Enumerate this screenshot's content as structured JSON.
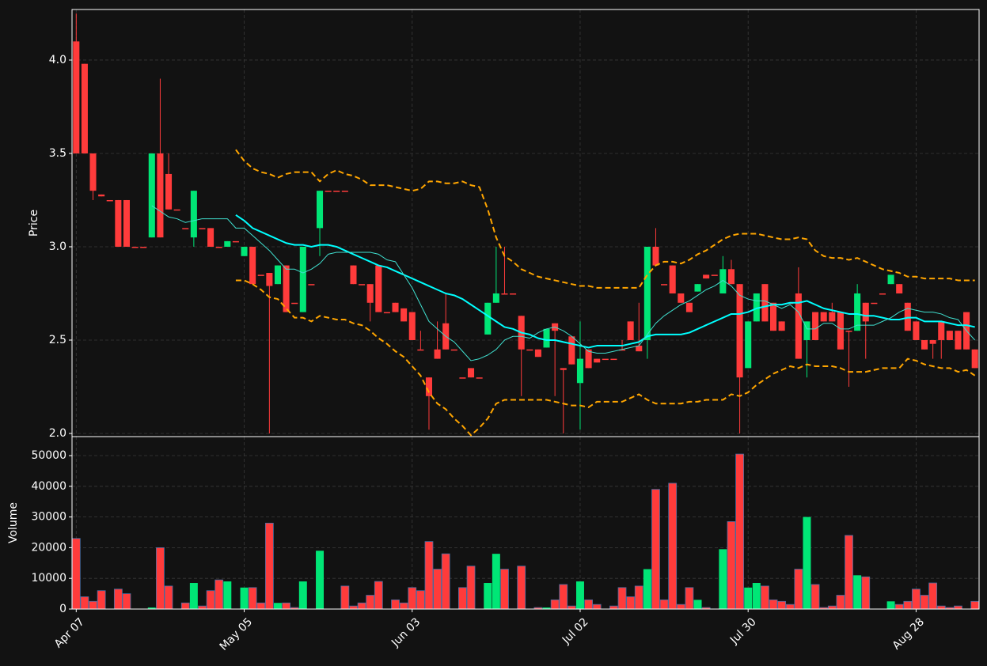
{
  "chart_data": [
    {
      "type": "candlestick",
      "ylabel": "Price",
      "ylim": [
        1.983,
        4.271
      ],
      "yticks": [
        {
          "value": 2,
          "label": "2.0"
        },
        2.5,
        {
          "value": 3,
          "label": "3.0"
        },
        3.5,
        {
          "value": 4,
          "label": "4.0"
        }
      ],
      "grid": true,
      "up_color": "#00e676",
      "down_color": "#ff3b3b",
      "open": [
        4.1,
        3.98,
        3.5,
        3.28,
        3.25,
        3.25,
        3.25,
        3,
        3,
        3.05,
        3.5,
        3.39,
        3.2,
        3.1,
        3.05,
        3.1,
        3.1,
        3,
        3,
        3.03,
        2.95,
        3,
        2.85,
        2.86,
        2.8,
        2.9,
        2.7,
        2.65,
        2.8,
        3.1,
        3.3,
        3.3,
        3.3,
        2.9,
        2.8,
        2.8,
        2.9,
        2.65,
        2.7,
        2.67,
        2.65,
        2.45,
        2.3,
        2.45,
        2.59,
        2.45,
        2.3,
        2.35,
        2.3,
        2.53,
        2.7,
        2.75,
        2.75,
        2.63,
        2.45,
        2.45,
        2.46,
        2.59,
        2.35,
        2.52,
        2.27,
        2.45,
        2.4,
        2.4,
        2.4,
        2.45,
        2.6,
        2.47,
        2.5,
        3,
        2.8,
        2.9,
        2.75,
        2.7,
        2.76,
        2.85,
        2.85,
        2.75,
        2.88,
        2.8,
        2.35,
        2.6,
        2.8,
        2.7,
        2.6,
        2.7,
        2.75,
        2.5,
        2.65,
        2.65,
        2.65,
        2.65,
        2.55,
        2.55,
        2.7,
        2.7,
        2.75,
        2.8,
        2.8,
        2.7,
        2.6,
        2.5,
        2.5,
        2.6,
        2.55,
        2.55,
        2.65,
        2.45
      ],
      "high": [
        4.25,
        3.98,
        3.5,
        3.28,
        3.25,
        3.25,
        3.25,
        3,
        3,
        3.5,
        3.9,
        3.5,
        3.2,
        3.1,
        3.3,
        3.1,
        3.1,
        3,
        3.03,
        3.03,
        3,
        3,
        2.85,
        2.86,
        2.9,
        2.9,
        2.7,
        3,
        2.8,
        3.3,
        3.3,
        3.3,
        3.3,
        2.9,
        2.8,
        2.8,
        2.9,
        2.65,
        2.7,
        2.67,
        2.65,
        2.55,
        2.3,
        2.6,
        2.75,
        2.45,
        2.3,
        2.35,
        2.3,
        2.7,
        3,
        3,
        2.75,
        2.63,
        2.45,
        2.45,
        2.56,
        2.59,
        2.35,
        2.52,
        2.6,
        2.45,
        2.4,
        2.4,
        2.4,
        2.5,
        2.6,
        2.7,
        3,
        3.1,
        2.8,
        2.9,
        2.75,
        2.7,
        2.8,
        2.85,
        2.85,
        2.95,
        2.93,
        2.8,
        2.6,
        2.75,
        2.8,
        2.7,
        2.6,
        2.7,
        2.89,
        2.6,
        2.65,
        2.65,
        2.7,
        2.65,
        2.55,
        2.8,
        2.7,
        2.7,
        2.75,
        2.85,
        2.8,
        2.7,
        2.6,
        2.5,
        2.5,
        2.6,
        2.55,
        2.55,
        2.65,
        2.45
      ],
      "low": [
        3.5,
        3.5,
        3.25,
        3.27,
        3.25,
        3,
        3,
        3,
        3,
        3.05,
        3.05,
        3.2,
        3.2,
        3.1,
        3,
        3.1,
        3,
        3,
        3,
        3.03,
        2.95,
        2.8,
        2.85,
        2,
        2.8,
        2.65,
        2.7,
        2.65,
        2.8,
        2.95,
        3.3,
        3.3,
        3.3,
        2.8,
        2.8,
        2.6,
        2.65,
        2.65,
        2.65,
        2.6,
        2.5,
        2.45,
        2.02,
        2.4,
        2.45,
        2.45,
        2.3,
        2.3,
        2.3,
        2.53,
        2.7,
        2.75,
        2.75,
        2.2,
        2.45,
        2.41,
        2.46,
        2.2,
        2,
        2.37,
        2.02,
        2.35,
        2.38,
        2.4,
        2.4,
        2.45,
        2.5,
        2.44,
        2.4,
        2.9,
        2.8,
        2.75,
        2.7,
        2.65,
        2.76,
        2.83,
        2.85,
        2.75,
        2.8,
        2,
        2.35,
        2.6,
        2.6,
        2.55,
        2.55,
        2.7,
        2.4,
        2.3,
        2.5,
        2.6,
        2.6,
        2.45,
        2.25,
        2.55,
        2.4,
        2.7,
        2.75,
        2.8,
        2.75,
        2.55,
        2.5,
        2.45,
        2.4,
        2.4,
        2.5,
        2.45,
        2.45,
        2.35
      ],
      "close": [
        3.5,
        3.5,
        3.3,
        3.27,
        3.25,
        3,
        3,
        3,
        3,
        3.5,
        3.05,
        3.2,
        3.2,
        3.1,
        3.3,
        3.1,
        3,
        3,
        3.03,
        3.03,
        3,
        2.8,
        2.85,
        2.79,
        2.9,
        2.65,
        2.7,
        3,
        2.8,
        3.3,
        3.3,
        3.3,
        3.3,
        2.8,
        2.8,
        2.7,
        2.65,
        2.65,
        2.65,
        2.6,
        2.5,
        2.45,
        2.2,
        2.4,
        2.45,
        2.45,
        2.3,
        2.3,
        2.3,
        2.7,
        2.75,
        2.75,
        2.75,
        2.45,
        2.45,
        2.41,
        2.56,
        2.55,
        2.34,
        2.37,
        2.4,
        2.35,
        2.38,
        2.4,
        2.4,
        2.45,
        2.5,
        2.44,
        3,
        2.9,
        2.8,
        2.75,
        2.7,
        2.65,
        2.8,
        2.83,
        2.85,
        2.88,
        2.8,
        2.3,
        2.6,
        2.75,
        2.6,
        2.55,
        2.55,
        2.7,
        2.4,
        2.6,
        2.5,
        2.6,
        2.6,
        2.45,
        2.55,
        2.75,
        2.6,
        2.7,
        2.75,
        2.85,
        2.75,
        2.55,
        2.5,
        2.45,
        2.48,
        2.5,
        2.5,
        2.45,
        2.45,
        2.35
      ],
      "series": [
        {
          "color": "#00ffff",
          "linewidth": 2,
          "linestyle": "solid",
          "values": [
            null,
            null,
            null,
            null,
            null,
            null,
            null,
            null,
            null,
            null,
            null,
            null,
            null,
            null,
            null,
            null,
            null,
            null,
            null,
            3.17,
            3.14,
            3.1,
            3.08,
            3.06,
            3.04,
            3.02,
            3.01,
            3.01,
            3.0,
            3.01,
            3.01,
            3.0,
            2.98,
            2.96,
            2.94,
            2.92,
            2.9,
            2.89,
            2.87,
            2.85,
            2.83,
            2.81,
            2.79,
            2.77,
            2.75,
            2.74,
            2.72,
            2.69,
            2.66,
            2.63,
            2.6,
            2.57,
            2.56,
            2.54,
            2.53,
            2.51,
            2.5,
            2.5,
            2.49,
            2.48,
            2.47,
            2.46,
            2.47,
            2.47,
            2.47,
            2.47,
            2.48,
            2.49,
            2.52,
            2.53,
            2.53,
            2.53,
            2.53,
            2.54,
            2.56,
            2.58,
            2.6,
            2.62,
            2.64,
            2.64,
            2.65,
            2.67,
            2.68,
            2.69,
            2.69,
            2.7,
            2.7,
            2.71,
            2.69,
            2.67,
            2.66,
            2.65,
            2.64,
            2.64,
            2.63,
            2.63,
            2.62,
            2.61,
            2.61,
            2.62,
            2.62,
            2.6,
            2.6,
            2.6,
            2.59,
            2.58,
            2.58,
            2.57
          ]
        },
        {
          "color": "#40e0d0",
          "linewidth": 1,
          "linestyle": "solid",
          "values": [
            null,
            null,
            null,
            null,
            null,
            null,
            null,
            null,
            null,
            3.22,
            3.19,
            3.16,
            3.15,
            3.13,
            3.14,
            3.15,
            3.15,
            3.15,
            3.15,
            3.1,
            3.1,
            3.06,
            3.02,
            2.98,
            2.93,
            2.88,
            2.88,
            2.86,
            2.88,
            2.91,
            2.96,
            2.97,
            2.97,
            2.97,
            2.97,
            2.97,
            2.96,
            2.93,
            2.92,
            2.85,
            2.78,
            2.69,
            2.6,
            2.56,
            2.52,
            2.49,
            2.44,
            2.39,
            2.4,
            2.42,
            2.45,
            2.5,
            2.52,
            2.52,
            2.51,
            2.54,
            2.56,
            2.57,
            2.55,
            2.52,
            2.48,
            2.44,
            2.43,
            2.43,
            2.44,
            2.45,
            2.46,
            2.47,
            2.53,
            2.59,
            2.63,
            2.66,
            2.69,
            2.71,
            2.74,
            2.77,
            2.79,
            2.82,
            2.79,
            2.74,
            2.72,
            2.71,
            2.71,
            2.69,
            2.67,
            2.69,
            2.65,
            2.56,
            2.56,
            2.59,
            2.59,
            2.56,
            2.56,
            2.58,
            2.58,
            2.58,
            2.6,
            2.62,
            2.65,
            2.67,
            2.66,
            2.65,
            2.65,
            2.64,
            2.62,
            2.61,
            2.55,
            2.5
          ]
        },
        {
          "color": "#ffa500",
          "linewidth": 2,
          "linestyle": "dashed",
          "values": [
            null,
            null,
            null,
            null,
            null,
            null,
            null,
            null,
            null,
            null,
            null,
            null,
            null,
            null,
            null,
            null,
            null,
            null,
            null,
            3.52,
            3.46,
            3.42,
            3.4,
            3.39,
            3.37,
            3.39,
            3.4,
            3.4,
            3.4,
            3.35,
            3.39,
            3.41,
            3.39,
            3.38,
            3.36,
            3.33,
            3.33,
            3.33,
            3.32,
            3.31,
            3.3,
            3.31,
            3.35,
            3.35,
            3.34,
            3.34,
            3.35,
            3.33,
            3.32,
            3.2,
            3.05,
            2.95,
            2.92,
            2.88,
            2.86,
            2.84,
            2.83,
            2.82,
            2.81,
            2.8,
            2.79,
            2.79,
            2.78,
            2.78,
            2.78,
            2.78,
            2.78,
            2.78,
            2.85,
            2.9,
            2.92,
            2.92,
            2.91,
            2.93,
            2.96,
            2.98,
            3.01,
            3.04,
            3.06,
            3.07,
            3.07,
            3.07,
            3.06,
            3.05,
            3.04,
            3.04,
            3.05,
            3.04,
            2.98,
            2.95,
            2.94,
            2.94,
            2.93,
            2.94,
            2.92,
            2.9,
            2.88,
            2.87,
            2.86,
            2.84,
            2.84,
            2.83,
            2.83,
            2.83,
            2.83,
            2.82,
            2.82,
            2.82
          ]
        },
        {
          "color": "#ffa500",
          "linewidth": 2,
          "linestyle": "dashed",
          "values": [
            null,
            null,
            null,
            null,
            null,
            null,
            null,
            null,
            null,
            null,
            null,
            null,
            null,
            null,
            null,
            null,
            null,
            null,
            null,
            2.82,
            2.82,
            2.8,
            2.77,
            2.73,
            2.72,
            2.67,
            2.62,
            2.62,
            2.6,
            2.63,
            2.62,
            2.61,
            2.61,
            2.59,
            2.58,
            2.55,
            2.51,
            2.48,
            2.44,
            2.41,
            2.36,
            2.31,
            2.22,
            2.16,
            2.13,
            2.08,
            2.04,
            1.99,
            2.03,
            2.08,
            2.16,
            2.18,
            2.18,
            2.18,
            2.18,
            2.18,
            2.18,
            2.17,
            2.16,
            2.15,
            2.15,
            2.14,
            2.17,
            2.17,
            2.17,
            2.17,
            2.19,
            2.21,
            2.18,
            2.16,
            2.16,
            2.16,
            2.16,
            2.17,
            2.17,
            2.18,
            2.18,
            2.18,
            2.21,
            2.2,
            2.22,
            2.26,
            2.29,
            2.32,
            2.34,
            2.36,
            2.35,
            2.37,
            2.36,
            2.36,
            2.36,
            2.35,
            2.33,
            2.33,
            2.33,
            2.34,
            2.35,
            2.35,
            2.35,
            2.4,
            2.39,
            2.37,
            2.36,
            2.35,
            2.35,
            2.33,
            2.34,
            2.31
          ]
        }
      ]
    },
    {
      "type": "bar",
      "ylabel": "Volume",
      "ylim": [
        0,
        56186
      ],
      "yticks": [
        0,
        10000,
        20000,
        30000,
        40000,
        50000
      ],
      "grid": true,
      "edge_color": "#4a6fa5",
      "categories": [
        "Apr 07",
        null,
        null,
        null,
        null,
        null,
        null,
        null,
        null,
        null,
        null,
        null,
        null,
        null,
        null,
        null,
        null,
        null,
        null,
        null,
        "May 05",
        null,
        null,
        null,
        null,
        null,
        null,
        null,
        null,
        null,
        null,
        null,
        null,
        null,
        null,
        null,
        null,
        null,
        null,
        null,
        "Jun 03",
        null,
        null,
        null,
        null,
        null,
        null,
        null,
        null,
        null,
        null,
        null,
        null,
        null,
        null,
        null,
        null,
        null,
        null,
        null,
        "Jul 02",
        null,
        null,
        null,
        null,
        null,
        null,
        null,
        null,
        null,
        null,
        null,
        null,
        null,
        null,
        null,
        null,
        null,
        null,
        null,
        "Jul 30",
        null,
        null,
        null,
        null,
        null,
        null,
        null,
        null,
        null,
        null,
        null,
        null,
        null,
        null,
        null,
        null,
        null,
        null,
        null,
        "Aug 28",
        null,
        null,
        null,
        null,
        null,
        null,
        null
      ],
      "values": [
        23000,
        4000,
        2500,
        6000,
        0,
        6500,
        5000,
        0,
        0,
        500,
        20000,
        7500,
        0,
        2000,
        8500,
        1000,
        6000,
        9500,
        9000,
        0,
        7000,
        7000,
        2000,
        28000,
        2000,
        2000,
        500,
        9000,
        0,
        19000,
        0,
        0,
        7500,
        1000,
        2000,
        4500,
        9000,
        0,
        3000,
        2000,
        7000,
        6000,
        22000,
        13000,
        18000,
        0,
        7000,
        14000,
        0,
        8500,
        18000,
        13000,
        0,
        14000,
        0,
        500,
        500,
        3000,
        8000,
        1000,
        9000,
        3000,
        1500,
        0,
        1000,
        7000,
        4000,
        7500,
        13000,
        39000,
        3000,
        41000,
        1500,
        7000,
        3000,
        500,
        0,
        19500,
        28500,
        50500,
        7000,
        8500,
        7500,
        3000,
        2500,
        1500,
        13000,
        30000,
        8000,
        500,
        1000,
        4500,
        24000,
        11000,
        10500,
        0,
        0,
        2500,
        1500,
        2500,
        6500,
        4500,
        8500,
        1000,
        500,
        1000,
        0,
        2500
      ]
    }
  ]
}
